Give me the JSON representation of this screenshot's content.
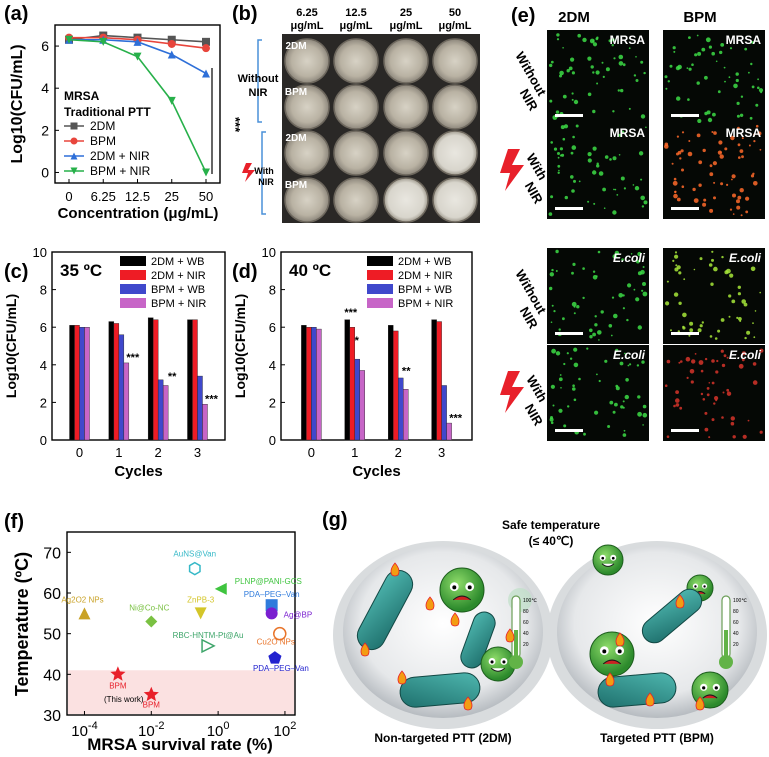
{
  "panels": {
    "a": "(a)",
    "b": "(b)",
    "c": "(c)",
    "d": "(d)",
    "e": "(e)",
    "f": "(f)",
    "g": "(g)"
  },
  "colors": {
    "black": "#000000",
    "red": "#ee1c25",
    "blue": "#3f48cc",
    "purple": "#c765c7",
    "gray": "#555555",
    "redline": "#e8453c",
    "blueline": "#2e6fd8",
    "green": "#27b04a"
  },
  "chart_a": {
    "ylabel": "Log10(CFU/mL)",
    "xlabel": "Concentration (μg/mL)",
    "note1": "MRSA",
    "note2": "Traditional PTT",
    "sig": "***",
    "chart_data": {
      "type": "line",
      "categories": [
        "0",
        "6.25",
        "12.5",
        "25",
        "50"
      ],
      "ylim": [
        -0.5,
        7
      ],
      "yticks": [
        "0",
        "2",
        "4",
        "6"
      ],
      "series": [
        {
          "name": "2DM",
          "values": [
            6.3,
            6.5,
            6.4,
            6.3,
            6.2
          ],
          "color": "#555555",
          "marker": "square"
        },
        {
          "name": "BPM",
          "values": [
            6.4,
            6.4,
            6.3,
            6.1,
            5.9
          ],
          "color": "#e8453c",
          "marker": "circle"
        },
        {
          "name": "2DM + NIR",
          "values": [
            6.3,
            6.3,
            6.2,
            5.6,
            4.7
          ],
          "color": "#2e6fd8",
          "marker": "triangle-up"
        },
        {
          "name": "BPM + NIR",
          "values": [
            6.3,
            6.2,
            5.5,
            3.4,
            0.0
          ],
          "color": "#27b04a",
          "marker": "triangle-down"
        }
      ]
    }
  },
  "panel_b": {
    "concentrations": [
      "6.25\nμg/mL",
      "12.5\nμg/mL",
      "25\nμg/mL",
      "50\nμg/mL"
    ],
    "conc_top": [
      "6.25",
      "12.5",
      "25",
      "50"
    ],
    "conc_bottom": [
      "μg/mL",
      "μg/mL",
      "μg/mL",
      "μg/mL"
    ],
    "without_nir": [
      "Without",
      "NIR"
    ],
    "with_nir": [
      "With",
      "NIR"
    ],
    "row_labels": [
      "2DM",
      "BPM",
      "2DM",
      "BPM"
    ]
  },
  "chart_c": {
    "title": "35 ºC",
    "ylabel": "Log10(CFU/mL)",
    "xlabel": "Cycles",
    "chart_data": {
      "type": "bar",
      "categories": [
        "0",
        "1",
        "2",
        "3"
      ],
      "ylim": [
        0,
        10
      ],
      "yticks": [
        "0",
        "2",
        "4",
        "6",
        "8",
        "10"
      ],
      "series": [
        {
          "name": "2DM + WB",
          "values": [
            6.1,
            6.3,
            6.5,
            6.4
          ],
          "color": "#000000"
        },
        {
          "name": "2DM + NIR",
          "values": [
            6.1,
            6.2,
            6.4,
            6.4
          ],
          "color": "#ee1c25"
        },
        {
          "name": "BPM + WB",
          "values": [
            6.0,
            5.6,
            3.2,
            3.4
          ],
          "color": "#3f48cc"
        },
        {
          "name": "BPM + NIR",
          "values": [
            6.0,
            4.1,
            2.9,
            1.9
          ],
          "color": "#c765c7"
        }
      ],
      "annotations": [
        "***",
        "**",
        "***"
      ]
    }
  },
  "chart_d": {
    "title": "40 ºC",
    "ylabel": "Log10(CFU/mL)",
    "xlabel": "Cycles",
    "chart_data": {
      "type": "bar",
      "categories": [
        "0",
        "1",
        "2",
        "3"
      ],
      "ylim": [
        0,
        10
      ],
      "yticks": [
        "0",
        "2",
        "4",
        "6",
        "8",
        "10"
      ],
      "series": [
        {
          "name": "2DM + WB",
          "values": [
            6.1,
            6.4,
            6.1,
            6.4
          ],
          "color": "#000000"
        },
        {
          "name": "2DM + NIR",
          "values": [
            6.0,
            6.0,
            5.8,
            6.3
          ],
          "color": "#ee1c25"
        },
        {
          "name": "BPM + WB",
          "values": [
            6.0,
            4.3,
            3.3,
            2.9
          ],
          "color": "#3f48cc"
        },
        {
          "name": "BPM + NIR",
          "values": [
            5.9,
            3.7,
            2.7,
            0.9
          ],
          "color": "#c765c7"
        }
      ],
      "annotations": [
        "***",
        "*",
        "**",
        "***"
      ]
    }
  },
  "panel_e": {
    "col1": "2DM",
    "col2": "BPM",
    "rows": [
      {
        "side": [
          "Without",
          "NIR"
        ],
        "tag": "MRSA",
        "italic": false
      },
      {
        "side": [
          "With",
          "NIR"
        ],
        "tag": "MRSA",
        "italic": false
      },
      {
        "side": [
          "Without",
          "NIR"
        ],
        "tag": "E.coli",
        "italic": true
      },
      {
        "side": [
          "With",
          "NIR"
        ],
        "tag": "E.coli",
        "italic": true
      }
    ]
  },
  "chart_f": {
    "ylabel": "Temperature (ºC)",
    "xlabel": "MRSA survival rate (%)",
    "chart_data": {
      "type": "scatter",
      "xscale": "log",
      "xlim": [
        3e-05,
        200
      ],
      "ylim": [
        30,
        75
      ],
      "xticks": [
        "10^-4",
        "10^-2",
        "10^0",
        "10^2"
      ],
      "yticks": [
        "30",
        "40",
        "50",
        "60",
        "70"
      ],
      "points": [
        {
          "label": "AuNS@Van",
          "x": 0.2,
          "y": 66,
          "color": "#35b8c7",
          "marker": "hexagon"
        },
        {
          "label": "PLNP@PANI-GCS",
          "x": 1.2,
          "y": 61,
          "color": "#3fc43f",
          "marker": "triangle-left"
        },
        {
          "label": "PDA–PEG–Van",
          "x": 40,
          "y": 57,
          "color": "#2f7bdc",
          "marker": "square"
        },
        {
          "label": "Ag2O2 NPs",
          "x": 0.0001,
          "y": 55,
          "color": "#c9a227",
          "marker": "triangle-up"
        },
        {
          "label": "ZnPB-3",
          "x": 0.3,
          "y": 55,
          "color": "#d4c62a",
          "marker": "triangle-down"
        },
        {
          "label": "Ag@BP",
          "x": 40,
          "y": 55,
          "color": "#7a1fd0",
          "marker": "circle"
        },
        {
          "label": "Ni@Co-NC",
          "x": 0.01,
          "y": 53,
          "color": "#7ac142",
          "marker": "diamond"
        },
        {
          "label": "Cu2O NPs",
          "x": 70,
          "y": 50,
          "color": "#e8742a",
          "marker": "circle-open"
        },
        {
          "label": "RBC-HNTM-Pt@Au",
          "x": 0.5,
          "y": 47,
          "color": "#3ea56a",
          "marker": "triangle-right-open"
        },
        {
          "label": "PDA–PEG–Van",
          "x": 50,
          "y": 44,
          "color": "#2323cf",
          "marker": "pentagon"
        },
        {
          "label": "BPM",
          "x": 0.001,
          "y": 40,
          "color": "#e8202a",
          "marker": "star"
        },
        {
          "label": "BPM",
          "x": 0.01,
          "y": 35,
          "color": "#e8202a",
          "marker": "star"
        }
      ],
      "note": "(This work)",
      "safe_band": [
        30,
        41
      ]
    }
  },
  "panel_g": {
    "safe1": "Safe temperature",
    "safe2": "(≤ 40℃)",
    "left_caption": "Non-targeted PTT (2DM)",
    "right_caption": "Targeted PTT (BPM)",
    "thermo_scale": [
      "100℃",
      "80",
      "60",
      "40",
      "20"
    ]
  }
}
